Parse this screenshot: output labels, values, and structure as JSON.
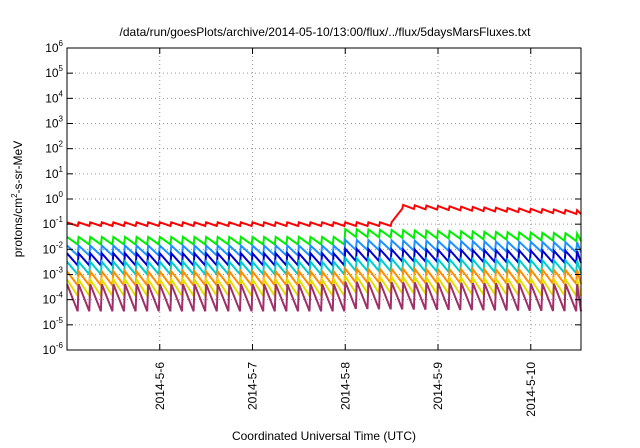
{
  "chart_data": {
    "type": "line",
    "title": "/data/run/goesPlots/archive/2014-05-10/13:00/flux/../flux/5daysMarsFluxes.txt",
    "xlabel": "Coordinated Universal Time (UTC)",
    "ylabel": {
      "prefix": "protons/cm",
      "sup": "2",
      "suffix": "-s-sr-MeV"
    },
    "yscale": "log",
    "ylim": [
      1e-06,
      1000000.0
    ],
    "xlim": [
      "2014-05-05 00:00",
      "2014-05-10 13:00"
    ],
    "grid": "dotted",
    "legend": "none",
    "y_ticks": [
      {
        "base": "10",
        "exp": "-6",
        "value": 1e-06
      },
      {
        "base": "10",
        "exp": "-5",
        "value": 1e-05
      },
      {
        "base": "10",
        "exp": "-4",
        "value": 0.0001
      },
      {
        "base": "10",
        "exp": "-3",
        "value": 0.001
      },
      {
        "base": "10",
        "exp": "-2",
        "value": 0.01
      },
      {
        "base": "10",
        "exp": "-1",
        "value": 0.1
      },
      {
        "base": "10",
        "exp": "0",
        "value": 1
      },
      {
        "base": "10",
        "exp": "1",
        "value": 10
      },
      {
        "base": "10",
        "exp": "2",
        "value": 100
      },
      {
        "base": "10",
        "exp": "3",
        "value": 1000
      },
      {
        "base": "10",
        "exp": "4",
        "value": 10000
      },
      {
        "base": "10",
        "exp": "5",
        "value": 100000
      },
      {
        "base": "10",
        "exp": "6",
        "value": 1000000
      }
    ],
    "x_ticks": [
      {
        "label": "2014-5-6",
        "value": "2014-05-06 00:00"
      },
      {
        "label": "2014-5-7",
        "value": "2014-05-07 00:00"
      },
      {
        "label": "2014-5-8",
        "value": "2014-05-08 00:00"
      },
      {
        "label": "2014-5-9",
        "value": "2014-05-09 00:00"
      },
      {
        "label": "2014-5-10",
        "value": "2014-05-10 00:00"
      }
    ],
    "series": [
      {
        "color": "#ff0000",
        "base": 0.1,
        "swing": 1.4,
        "jump_at": "2014-05-08 13:30",
        "after": 0.5,
        "after_end": 0.3
      },
      {
        "color": "#00ee00",
        "base": 0.022,
        "swing": 2.0,
        "jump_at": "2014-05-08 00:00",
        "after": 0.045,
        "after_end": 0.03
      },
      {
        "color": "#1e90ff",
        "base": 0.009,
        "swing": 2.5,
        "jump_at": "2014-05-08 00:00",
        "after": 0.015,
        "after_end": 0.012
      },
      {
        "color": "#0000cd",
        "base": 0.004,
        "swing": 3.0,
        "jump_at": "2014-05-08 00:00",
        "after": 0.006,
        "after_end": 0.005
      },
      {
        "color": "#00cccc",
        "base": 0.0018,
        "swing": 3.2,
        "jump_at": "2014-05-08 00:00",
        "after": 0.0025,
        "after_end": 0.002
      },
      {
        "color": "#ff8c00",
        "base": 0.0007,
        "swing": 3.6,
        "jump_at": "2014-05-08 00:00",
        "after": 0.0009,
        "after_end": 0.0008
      },
      {
        "color": "#e0e000",
        "base": 0.0003,
        "swing": 4.5,
        "jump_at": "2014-05-08 00:00",
        "after": 0.0004,
        "after_end": 0.0003
      },
      {
        "color": "#a0306a",
        "base": 0.00012,
        "swing": 12.0,
        "jump_at": "2014-05-08 00:00",
        "after": 0.00015,
        "after_end": 0.00012
      }
    ]
  }
}
